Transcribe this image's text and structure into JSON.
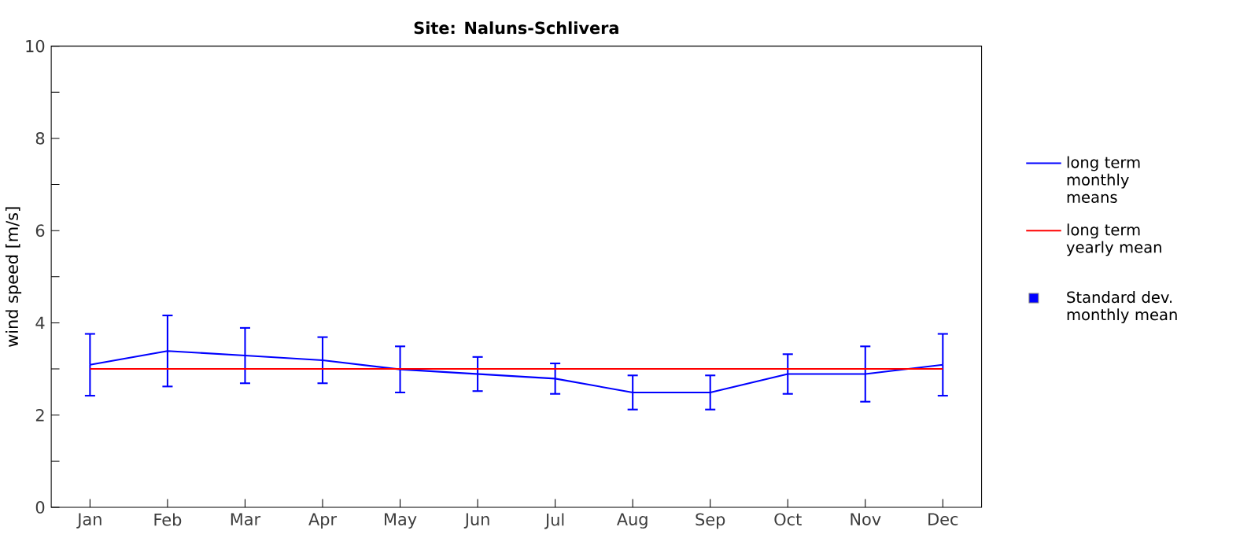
{
  "chart_data": {
    "type": "line",
    "title": "Site: Naluns-Schlivera",
    "ylabel": "wind speed [m/s]",
    "categories": [
      "Jan",
      "Feb",
      "Mar",
      "Apr",
      "May",
      "Jun",
      "Jul",
      "Aug",
      "Sep",
      "Oct",
      "Nov",
      "Dec"
    ],
    "series": [
      {
        "name": "long term monthly means",
        "color": "#0000ff",
        "values": [
          3.09,
          3.39,
          3.29,
          3.19,
          2.99,
          2.89,
          2.79,
          2.49,
          2.49,
          2.89,
          2.89,
          3.09
        ],
        "errors": [
          0.67,
          0.77,
          0.6,
          0.5,
          0.5,
          0.37,
          0.33,
          0.37,
          0.37,
          0.43,
          0.6,
          0.67
        ]
      },
      {
        "name": "long term yearly mean",
        "color": "#ff0000",
        "values": [
          3.0,
          3.0,
          3.0,
          3.0,
          3.0,
          3.0,
          3.0,
          3.0,
          3.0,
          3.0,
          3.0,
          3.0
        ]
      },
      {
        "name": "Standard dev. monthly mean",
        "type": "scatter",
        "marker": "square",
        "color": "#0000ff",
        "values": [
          null,
          null,
          null,
          null,
          null,
          null,
          null,
          null,
          null,
          null,
          null,
          null
        ]
      }
    ],
    "ylim": [
      0,
      10
    ],
    "yticks": [
      0,
      {
        "value": 1,
        "label": null
      },
      2,
      {
        "value": 3,
        "label": null
      },
      4,
      {
        "value": 5,
        "label": null
      },
      6,
      {
        "value": 7,
        "label": null
      },
      8,
      {
        "value": 9,
        "label": null
      },
      10
    ],
    "grid": false,
    "legend": "right",
    "marker": "none",
    "line_style": "solid"
  }
}
